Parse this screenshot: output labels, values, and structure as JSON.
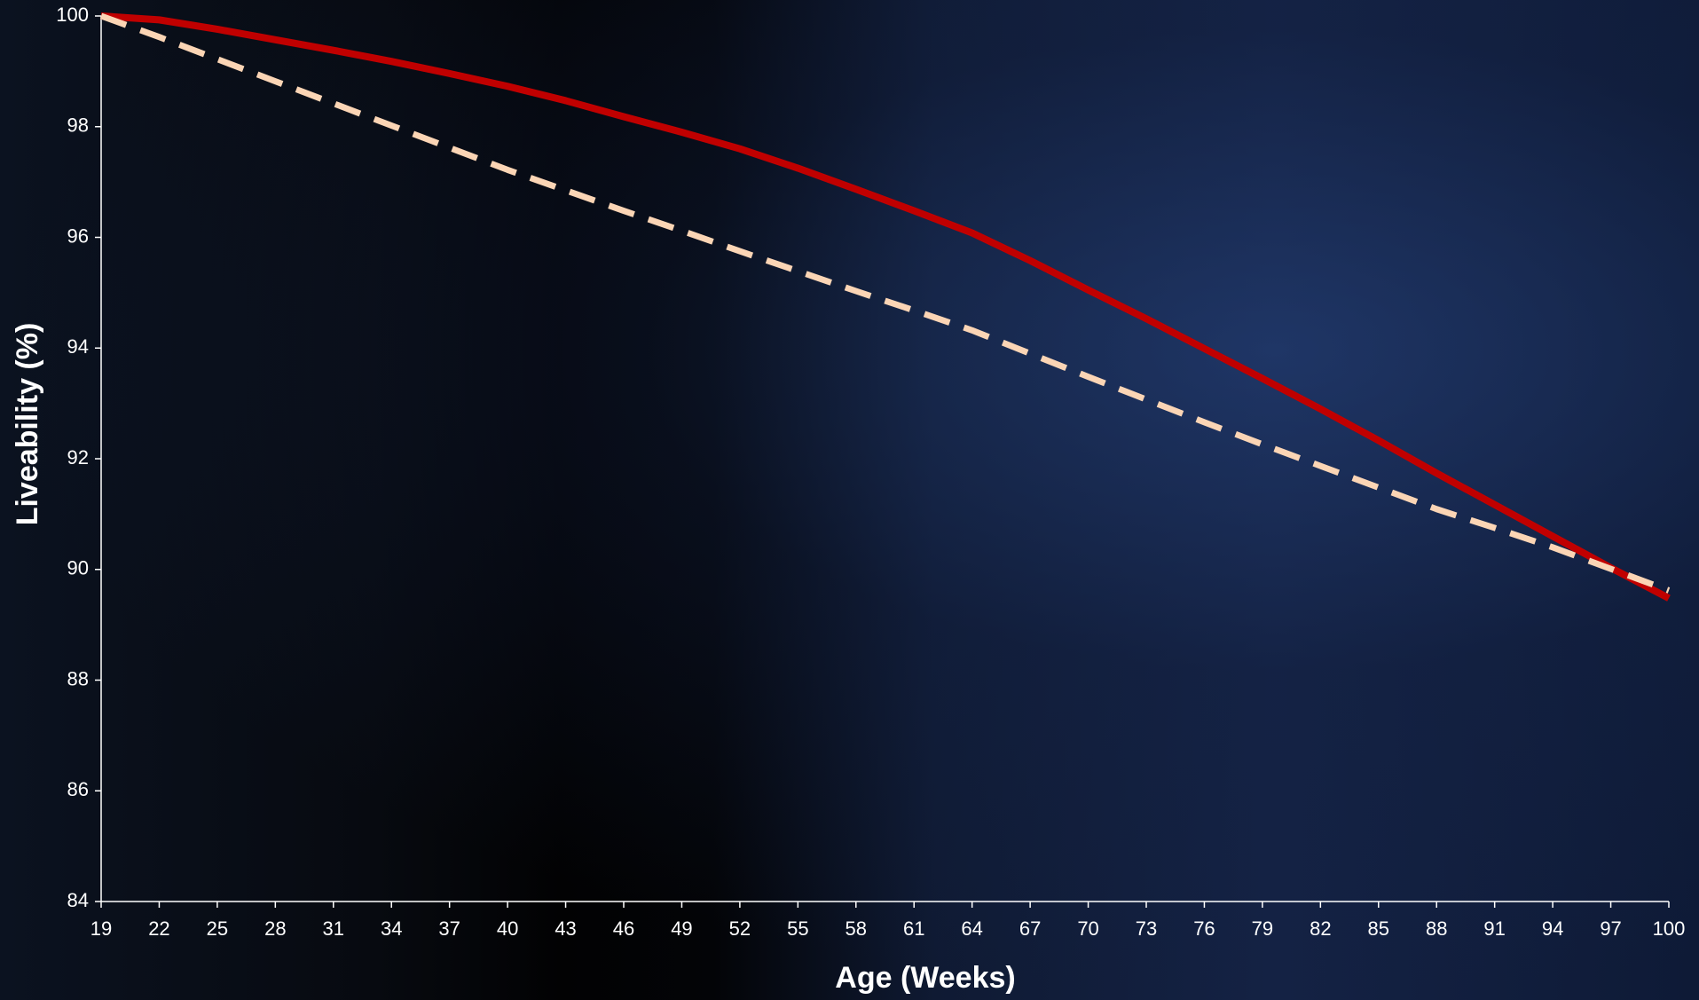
{
  "chart_data": {
    "type": "line",
    "x_label": "Age (Weeks)",
    "y_label": "Liveability (%)",
    "x": [
      19,
      22,
      25,
      28,
      31,
      34,
      37,
      40,
      43,
      46,
      49,
      52,
      55,
      58,
      61,
      64,
      67,
      70,
      73,
      76,
      79,
      82,
      85,
      88,
      91,
      94,
      97,
      100
    ],
    "series": [
      {
        "color": "#c00000",
        "dash": false,
        "values": [
          100,
          99.93,
          99.76,
          99.57,
          99.38,
          99.18,
          98.96,
          98.73,
          98.47,
          98.18,
          97.9,
          97.6,
          97.25,
          96.87,
          96.48,
          96.08,
          95.58,
          95.05,
          94.53,
          93.99,
          93.45,
          92.9,
          92.33,
          91.74,
          91.17,
          90.6,
          90.03,
          89.48
        ]
      },
      {
        "color": "#fbd5b5",
        "dash": true,
        "values": [
          100,
          99.62,
          99.22,
          98.82,
          98.42,
          98.02,
          97.62,
          97.22,
          96.85,
          96.48,
          96.12,
          95.75,
          95.39,
          95.03,
          94.68,
          94.32,
          93.9,
          93.48,
          93.07,
          92.66,
          92.26,
          91.87,
          91.48,
          91.09,
          90.75,
          90.4,
          90.01,
          89.62
        ]
      }
    ],
    "xlim": [
      19,
      100
    ],
    "xticks": [
      19,
      22,
      25,
      28,
      31,
      34,
      37,
      40,
      43,
      46,
      49,
      52,
      55,
      58,
      61,
      64,
      67,
      70,
      73,
      76,
      79,
      82,
      85,
      88,
      91,
      94,
      97,
      100
    ],
    "ylim": [
      84,
      100
    ],
    "yticks": [
      84,
      86,
      88,
      90,
      92,
      94,
      96,
      98,
      100
    ],
    "grid": false
  }
}
